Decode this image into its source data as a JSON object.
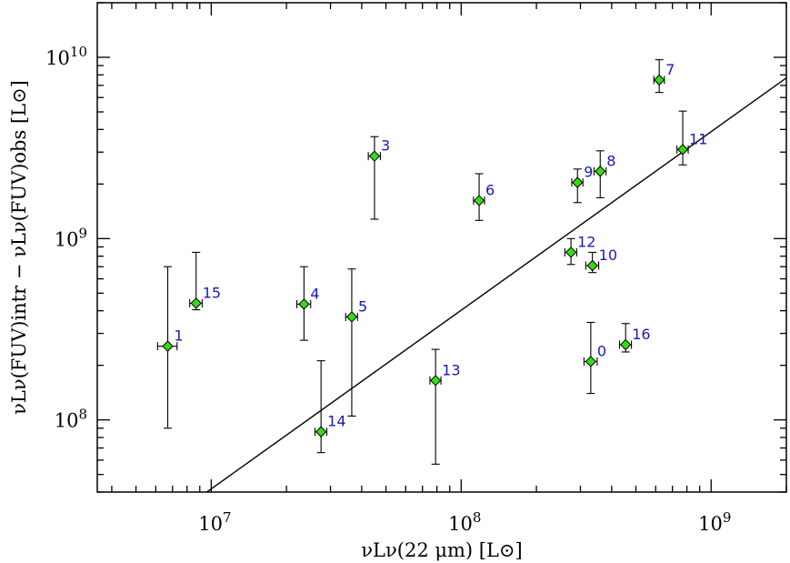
{
  "chart_data": {
    "type": "scatter",
    "xlabel": "νLν(22 μm) [L⊙]",
    "ylabel": "νLν(FUV)intr − νLν(FUV)obs [L⊙]",
    "xscale": "log",
    "yscale": "log",
    "xlim": [
      3500000,
      2000000000
    ],
    "ylim": [
      40000000,
      20000000000
    ],
    "x_ticks": [
      {
        "value": 10000000,
        "label": "10^7"
      },
      {
        "value": 100000000,
        "label": "10^8"
      },
      {
        "value": 1000000000,
        "label": "10^9"
      }
    ],
    "y_ticks": [
      {
        "value": 100000000,
        "label": "10^8"
      },
      {
        "value": 1000000000,
        "label": "10^9"
      },
      {
        "value": 10000000000,
        "label": "10^10"
      }
    ],
    "marker_color": "#33dd11",
    "errorbar_color": "#000000",
    "label_color": "#1a1ab4",
    "fit_line": {
      "x": [
        9600000,
        2000000000
      ],
      "y": [
        40000000,
        7700000000
      ]
    },
    "points": [
      {
        "label": "0",
        "x": 330000000,
        "y": 210000000,
        "xerr": [
          20000000,
          20000000
        ],
        "yerr_low": 140000000,
        "yerr_high": 345000000
      },
      {
        "label": "1",
        "x": 6700000,
        "y": 255000000,
        "xerr": [
          600000,
          600000
        ],
        "yerr_low": 90000000,
        "yerr_high": 700000000
      },
      {
        "label": "3",
        "x": 45000000,
        "y": 2850000000,
        "xerr": [
          2500000,
          2500000
        ],
        "yerr_low": 1280000000,
        "yerr_high": 3650000000
      },
      {
        "label": "4",
        "x": 23500000,
        "y": 435000000,
        "xerr": [
          1500000,
          1500000
        ],
        "yerr_low": 275000000,
        "yerr_high": 700000000
      },
      {
        "label": "5",
        "x": 36500000,
        "y": 370000000,
        "xerr": [
          2000000,
          2000000
        ],
        "yerr_low": 105000000,
        "yerr_high": 680000000
      },
      {
        "label": "6",
        "x": 118000000,
        "y": 1620000000,
        "xerr": [
          6000000,
          6000000
        ],
        "yerr_low": 1260000000,
        "yerr_high": 2280000000
      },
      {
        "label": "7",
        "x": 620000000,
        "y": 7500000000,
        "xerr": [
          30000000,
          30000000
        ],
        "yerr_low": 6400000000,
        "yerr_high": 9700000000
      },
      {
        "label": "8",
        "x": 360000000,
        "y": 2350000000,
        "xerr": [
          20000000,
          20000000
        ],
        "yerr_low": 1680000000,
        "yerr_high": 3050000000
      },
      {
        "label": "9",
        "x": 292000000,
        "y": 2040000000,
        "xerr": [
          15000000,
          15000000
        ],
        "yerr_low": 1580000000,
        "yerr_high": 2420000000
      },
      {
        "label": "10",
        "x": 335000000,
        "y": 710000000,
        "xerr": [
          20000000,
          20000000
        ],
        "yerr_low": 650000000,
        "yerr_high": 840000000
      },
      {
        "label": "11",
        "x": 770000000,
        "y": 3100000000,
        "xerr": [
          40000000,
          40000000
        ],
        "yerr_low": 2550000000,
        "yerr_high": 5050000000
      },
      {
        "label": "12",
        "x": 275000000,
        "y": 840000000,
        "xerr": [
          15000000,
          15000000
        ],
        "yerr_low": 720000000,
        "yerr_high": 1000000000
      },
      {
        "label": "13",
        "x": 79000000,
        "y": 165000000,
        "xerr": [
          4000000,
          4000000
        ],
        "yerr_low": 57000000,
        "yerr_high": 245000000
      },
      {
        "label": "14",
        "x": 27500000,
        "y": 86000000,
        "xerr": [
          1500000,
          1500000
        ],
        "yerr_low": 66000000,
        "yerr_high": 212000000
      },
      {
        "label": "15",
        "x": 8700000,
        "y": 440000000,
        "xerr": [
          500000,
          500000
        ],
        "yerr_low": 405000000,
        "yerr_high": 840000000
      },
      {
        "label": "16",
        "x": 455000000,
        "y": 260000000,
        "xerr": [
          25000000,
          25000000
        ],
        "yerr_low": 237000000,
        "yerr_high": 340000000
      }
    ]
  }
}
